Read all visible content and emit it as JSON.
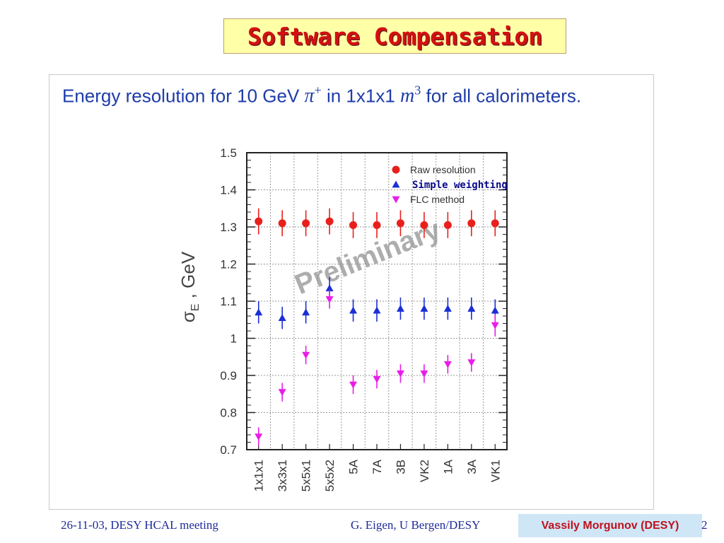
{
  "slide": {
    "title": "Software Compensation",
    "caption": {
      "lead": "Energy resolution for 10 GeV ",
      "particle": "π",
      "particle_sup": "+",
      "mid": " in 1x1x1 ",
      "unit": "m",
      "unit_sup": "3",
      "tail": " for all calorimeters."
    },
    "footer": {
      "left": "26-11-03, DESY HCAL meeting",
      "center": "G. Eigen,  U Bergen/DESY",
      "presenter": "Vassily Morgunov (DESY)",
      "page": "2"
    }
  },
  "chart_data": {
    "type": "scatter",
    "title": "",
    "xlabel": "",
    "ylabel": "σE , GeV",
    "ylabel_main": "σ",
    "ylabel_sub": "E",
    "ylabel_rest": " , GeV",
    "categories": [
      "1x1x1",
      "3x3x1",
      "5x5x1",
      "5x5x2",
      "5A",
      "7A",
      "3B",
      "VK2",
      "1A",
      "3A",
      "VK1"
    ],
    "ylim": [
      0.7,
      1.5
    ],
    "yticks": [
      0.7,
      0.8,
      0.9,
      1.0,
      1.1,
      1.2,
      1.3,
      1.4,
      1.5
    ],
    "ytick_labels": [
      "0.7",
      "0.8",
      "0.9",
      "1",
      "1.1",
      "1.2",
      "1.3",
      "1.4",
      "1.5"
    ],
    "grid": true,
    "legend_position": "top-right",
    "watermark": "Preliminary",
    "series": [
      {
        "name": "Raw resolution",
        "marker": "circle",
        "color": "#e8201c",
        "values": [
          1.315,
          1.31,
          1.31,
          1.315,
          1.305,
          1.305,
          1.31,
          1.305,
          1.305,
          1.31,
          1.31
        ],
        "errors": [
          0.035,
          0.035,
          0.035,
          0.035,
          0.035,
          0.035,
          0.035,
          0.035,
          0.035,
          0.035,
          0.035
        ]
      },
      {
        "name": "Simple weighting",
        "marker": "triangle-up",
        "color": "#1a2fd6",
        "values": [
          1.07,
          1.055,
          1.07,
          1.135,
          1.075,
          1.075,
          1.08,
          1.08,
          1.08,
          1.08,
          1.075
        ],
        "errors": [
          0.03,
          0.03,
          0.03,
          0.03,
          0.03,
          0.03,
          0.03,
          0.03,
          0.03,
          0.03,
          0.03
        ]
      },
      {
        "name": "FLC method",
        "marker": "triangle-down",
        "color": "#e81ee8",
        "values": [
          0.735,
          0.855,
          0.955,
          1.105,
          0.875,
          0.89,
          0.905,
          0.905,
          0.93,
          0.935,
          1.035
        ],
        "errors": [
          0.025,
          0.025,
          0.025,
          0.025,
          0.025,
          0.025,
          0.025,
          0.025,
          0.025,
          0.025,
          0.03
        ]
      }
    ]
  },
  "colors": {
    "title_red": "#d41010",
    "title_bg": "#ffffa8",
    "caption_blue": "#1e3ca8",
    "footer_blue": "#1f2a9c",
    "presenter_bg": "#cfe6f7"
  }
}
